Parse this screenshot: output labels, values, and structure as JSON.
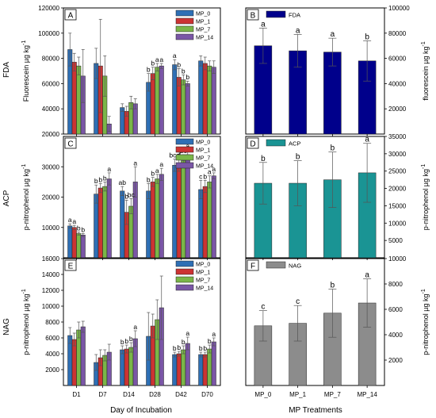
{
  "figure": {
    "left_xlabel": "Day of Incubation",
    "right_xlabel": "MP Treatments",
    "row_labels": [
      "FDA",
      "ACP",
      "NAG"
    ]
  },
  "colors": {
    "MP_0": "#2e6fb5",
    "MP_1": "#cc3333",
    "MP_7": "#7ab648",
    "MP_14": "#7a56a6",
    "FDA": "#00008b",
    "ACP": "#1a9494",
    "NAG": "#8c8c8c"
  },
  "chart_data": [
    {
      "panel": "A",
      "type": "bar",
      "ylabel": "Fluorescein µg kg-1",
      "ylim": [
        20000,
        120000
      ],
      "yticks": [
        20000,
        40000,
        60000,
        80000,
        100000,
        120000
      ],
      "ytick_labels": [
        "20000",
        "40000",
        "60000",
        "80000",
        "100000",
        "120000"
      ],
      "categories": [
        "D1",
        "D7",
        "D14",
        "D28",
        "D42",
        "D70"
      ],
      "series": [
        {
          "name": "MP_0",
          "values": [
            87000,
            76000,
            41000,
            61000,
            75000,
            78000
          ],
          "errors": [
            13000,
            12000,
            3000,
            7000,
            4000,
            4000
          ]
        },
        {
          "name": "MP_1",
          "values": [
            77000,
            74000,
            38000,
            68000,
            65000,
            76000
          ],
          "errors": [
            7000,
            37000,
            4000,
            5000,
            7000,
            5000
          ]
        },
        {
          "name": "MP_7",
          "values": [
            74000,
            66000,
            45000,
            73000,
            63000,
            74000
          ],
          "errors": [
            7000,
            16000,
            5000,
            3000,
            4000,
            4000
          ]
        },
        {
          "name": "MP_14",
          "values": [
            66000,
            28000,
            44000,
            74000,
            60000,
            73000
          ],
          "errors": [
            21000,
            6000,
            4000,
            2000,
            2000,
            5000
          ]
        }
      ],
      "annotations": [
        {
          "cat": 3,
          "series": 0,
          "text": "b"
        },
        {
          "cat": 3,
          "series": 1,
          "text": "b"
        },
        {
          "cat": 3,
          "series": 2,
          "text": "a"
        },
        {
          "cat": 3,
          "series": 3,
          "text": "a"
        },
        {
          "cat": 4,
          "series": 0,
          "text": "a"
        },
        {
          "cat": 4,
          "series": 1,
          "text": "b"
        },
        {
          "cat": 4,
          "series": 2,
          "text": "b"
        },
        {
          "cat": 4,
          "series": 3,
          "text": "b"
        }
      ]
    },
    {
      "panel": "B",
      "type": "bar",
      "ylabel": "fluorescein µg kg-1",
      "ylim": [
        0,
        100000
      ],
      "yticks": [
        20000,
        40000,
        60000,
        80000,
        100000
      ],
      "ytick_labels": [
        "20000",
        "40000",
        "60000",
        "80000",
        "100000"
      ],
      "categories": [
        "MP_0",
        "MP_1",
        "MP_7",
        "MP_14"
      ],
      "series": [
        {
          "name": "FDA",
          "values": [
            70000,
            66000,
            65000,
            58000
          ],
          "errors": [
            14000,
            13000,
            11000,
            16000
          ]
        }
      ],
      "annotations": [
        {
          "cat": 0,
          "series": 0,
          "text": "a"
        },
        {
          "cat": 1,
          "series": 0,
          "text": "a"
        },
        {
          "cat": 2,
          "series": 0,
          "text": "a"
        },
        {
          "cat": 3,
          "series": 0,
          "text": "b"
        }
      ]
    },
    {
      "panel": "C",
      "type": "bar",
      "ylabel": "p-nitrophenol µg kg-1",
      "ylim": [
        0,
        40000
      ],
      "yticks": [
        10000,
        20000,
        30000
      ],
      "ytick_labels": [
        "10000",
        "20000",
        "30000"
      ],
      "categories": [
        "D1",
        "D7",
        "D14",
        "D28",
        "D42",
        "D70"
      ],
      "series": [
        {
          "name": "MP_0",
          "values": [
            10500,
            21000,
            22000,
            22000,
            30500,
            22500
          ],
          "errors": [
            700,
            3000,
            1500,
            2500,
            2000,
            3000
          ]
        },
        {
          "name": "MP_1",
          "values": [
            10000,
            23000,
            15000,
            25000,
            30500,
            23500
          ],
          "errors": [
            700,
            1500,
            4000,
            1500,
            2000,
            2000
          ]
        },
        {
          "name": "MP_7",
          "values": [
            8000,
            23500,
            17000,
            26000,
            32000,
            25000
          ],
          "errors": [
            500,
            1500,
            2500,
            1500,
            2000,
            2000
          ]
        },
        {
          "name": "MP_14",
          "values": [
            7500,
            26000,
            25000,
            27500,
            34000,
            27000
          ],
          "errors": [
            500,
            2000,
            5000,
            2000,
            1500,
            1000
          ]
        }
      ],
      "annotations": [
        {
          "cat": 0,
          "series": 0,
          "text": "a"
        },
        {
          "cat": 0,
          "series": 1,
          "text": "a"
        },
        {
          "cat": 0,
          "series": 2,
          "text": "b"
        },
        {
          "cat": 0,
          "series": 3,
          "text": "b"
        },
        {
          "cat": 1,
          "series": 0,
          "text": "b"
        },
        {
          "cat": 1,
          "series": 1,
          "text": "b"
        },
        {
          "cat": 1,
          "series": 2,
          "text": "b"
        },
        {
          "cat": 1,
          "series": 3,
          "text": "a"
        },
        {
          "cat": 2,
          "series": 0,
          "text": "ab"
        },
        {
          "cat": 2,
          "series": 1,
          "text": "b"
        },
        {
          "cat": 2,
          "series": 2,
          "text": "bc"
        },
        {
          "cat": 2,
          "series": 3,
          "text": "a"
        },
        {
          "cat": 3,
          "series": 0,
          "text": "b"
        },
        {
          "cat": 3,
          "series": 1,
          "text": "b"
        },
        {
          "cat": 3,
          "series": 2,
          "text": "a"
        },
        {
          "cat": 3,
          "series": 3,
          "text": "a"
        },
        {
          "cat": 4,
          "series": 0,
          "text": "bcd"
        },
        {
          "cat": 4,
          "series": 1,
          "text": "d"
        },
        {
          "cat": 4,
          "series": 2,
          "text": "bc"
        },
        {
          "cat": 4,
          "series": 3,
          "text": "a"
        },
        {
          "cat": 5,
          "series": 0,
          "text": "c"
        },
        {
          "cat": 5,
          "series": 1,
          "text": "b"
        },
        {
          "cat": 5,
          "series": 2,
          "text": "a"
        },
        {
          "cat": 5,
          "series": 3,
          "text": "a"
        }
      ]
    },
    {
      "panel": "D",
      "type": "bar",
      "ylabel": "p-nitrophenol µg kg-1",
      "ylim": [
        0,
        35000
      ],
      "yticks": [
        5000,
        10000,
        15000,
        20000,
        25000,
        30000,
        35000
      ],
      "ytick_labels": [
        "5000",
        "10000",
        "15000",
        "20000",
        "25000",
        "30000",
        "35000"
      ],
      "categories": [
        "MP_0",
        "MP_1",
        "MP_7",
        "MP_14"
      ],
      "series": [
        {
          "name": "ACP",
          "values": [
            21500,
            21500,
            22500,
            24500
          ],
          "errors": [
            6000,
            6500,
            8000,
            8500
          ]
        }
      ],
      "annotations": [
        {
          "cat": 0,
          "series": 0,
          "text": "b"
        },
        {
          "cat": 1,
          "series": 0,
          "text": "b"
        },
        {
          "cat": 2,
          "series": 0,
          "text": "b"
        },
        {
          "cat": 3,
          "series": 0,
          "text": "a"
        }
      ]
    },
    {
      "panel": "E",
      "type": "bar",
      "ylabel": "p-nitrophenol µg kg-1",
      "ylim": [
        0,
        16000
      ],
      "yticks": [
        2000,
        4000,
        6000,
        8000,
        10000,
        12000,
        14000,
        16000
      ],
      "ytick_labels": [
        "2000",
        "4000",
        "6000",
        "8000",
        "10000",
        "12000",
        "14000",
        "16000"
      ],
      "categories": [
        "D1",
        "D7",
        "D14",
        "D28",
        "D42",
        "D70"
      ],
      "series": [
        {
          "name": "MP_0",
          "values": [
            6300,
            2900,
            4500,
            6200,
            3900,
            3900
          ],
          "errors": [
            1000,
            1000,
            500,
            3000,
            300,
            300
          ]
        },
        {
          "name": "MP_1",
          "values": [
            5800,
            3500,
            4600,
            7500,
            4000,
            3900
          ],
          "errors": [
            800,
            1000,
            500,
            1500,
            300,
            300
          ]
        },
        {
          "name": "MP_7",
          "values": [
            7000,
            3800,
            4800,
            8300,
            4500,
            4600
          ],
          "errors": [
            1000,
            700,
            600,
            2500,
            500,
            500
          ]
        },
        {
          "name": "MP_14",
          "values": [
            7400,
            4200,
            5900,
            9800,
            5300,
            5500
          ],
          "errors": [
            700,
            1000,
            1000,
            4000,
            800,
            500
          ]
        }
      ],
      "annotations": [
        {
          "cat": 2,
          "series": 0,
          "text": "b"
        },
        {
          "cat": 2,
          "series": 1,
          "text": "b"
        },
        {
          "cat": 2,
          "series": 2,
          "text": "b"
        },
        {
          "cat": 2,
          "series": 3,
          "text": "a"
        },
        {
          "cat": 4,
          "series": 0,
          "text": "b"
        },
        {
          "cat": 4,
          "series": 1,
          "text": "b"
        },
        {
          "cat": 4,
          "series": 2,
          "text": "b"
        },
        {
          "cat": 4,
          "series": 3,
          "text": "a"
        },
        {
          "cat": 5,
          "series": 0,
          "text": "b"
        },
        {
          "cat": 5,
          "series": 1,
          "text": "b"
        },
        {
          "cat": 5,
          "series": 2,
          "text": "b"
        },
        {
          "cat": 5,
          "series": 3,
          "text": "a"
        }
      ]
    },
    {
      "panel": "F",
      "type": "bar",
      "ylabel": "p-nitrophenol µg kg-1",
      "ylim": [
        0,
        10000
      ],
      "yticks": [
        2000,
        4000,
        6000,
        8000,
        10000
      ],
      "ytick_labels": [
        "2000",
        "4000",
        "6000",
        "8000",
        "10000"
      ],
      "categories": [
        "MP_0",
        "MP_1",
        "MP_7",
        "MP_14"
      ],
      "series": [
        {
          "name": "NAG",
          "values": [
            4700,
            4900,
            5700,
            6500
          ],
          "errors": [
            1200,
            1400,
            1900,
            1900
          ]
        }
      ],
      "annotations": [
        {
          "cat": 0,
          "series": 0,
          "text": "c"
        },
        {
          "cat": 1,
          "series": 0,
          "text": "c"
        },
        {
          "cat": 2,
          "series": 0,
          "text": "b"
        },
        {
          "cat": 3,
          "series": 0,
          "text": "a"
        }
      ]
    }
  ]
}
